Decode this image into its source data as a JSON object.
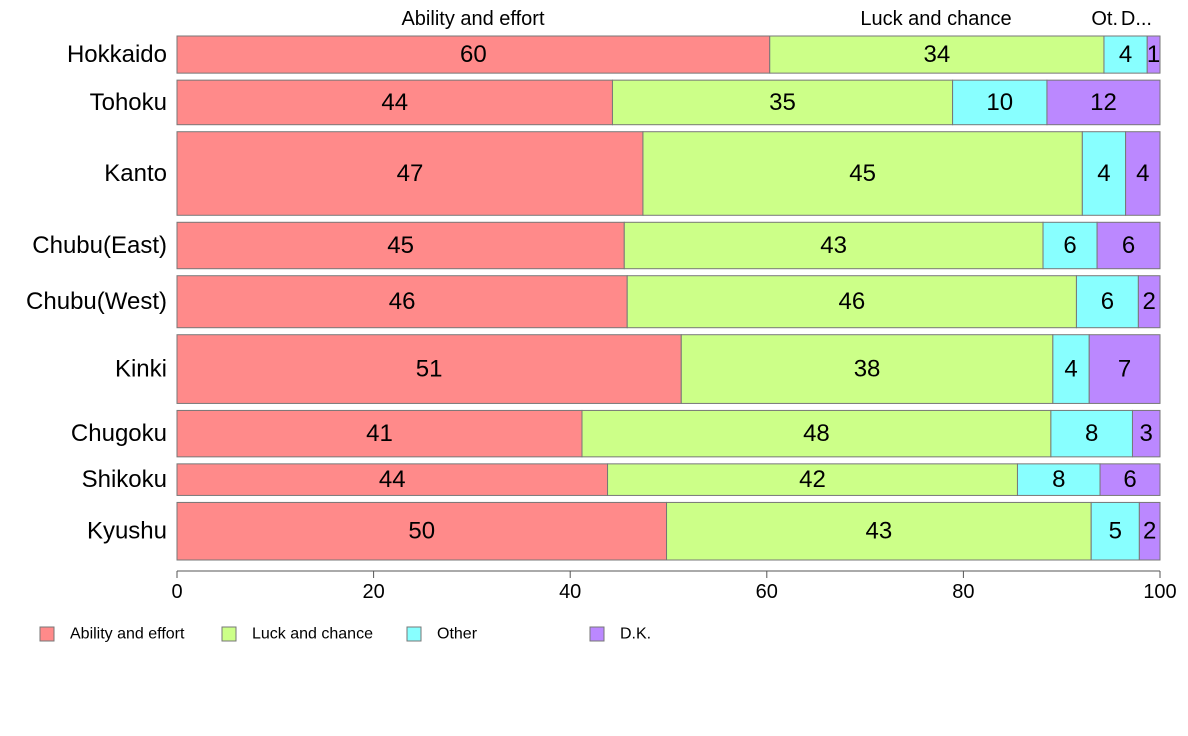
{
  "chart_data": {
    "type": "bar",
    "orientation": "horizontal",
    "stacked": true,
    "categories": [
      "Hokkaido",
      "Tohoku",
      "Kanto",
      "Chubu(East)",
      "Chubu(West)",
      "Kinki",
      "Chugoku",
      "Shikoku",
      "Kyushu"
    ],
    "series": [
      {
        "name": "Ability and effort",
        "color": "#ff8a8a",
        "values": [
          60.3,
          44.3,
          47.4,
          45.5,
          45.8,
          51.3,
          41.2,
          43.8,
          49.8
        ]
      },
      {
        "name": "Luck and chance",
        "color": "#ccff88",
        "values": [
          34.0,
          34.6,
          44.7,
          42.6,
          45.7,
          37.8,
          47.7,
          41.7,
          43.2
        ]
      },
      {
        "name": "Other",
        "color": "#88ffff",
        "values": [
          4.4,
          9.6,
          4.4,
          5.5,
          6.3,
          3.7,
          8.3,
          8.4,
          4.9
        ]
      },
      {
        "name": "D.K.",
        "color": "#bb88ff",
        "values": [
          1.3,
          11.5,
          3.5,
          6.4,
          2.2,
          7.2,
          2.8,
          6.1,
          2.1
        ]
      }
    ],
    "value_labels": [
      [
        "60",
        "34",
        "4",
        "1"
      ],
      [
        "44",
        "35",
        "10",
        "12"
      ],
      [
        "47",
        "45",
        "4",
        "4"
      ],
      [
        "45",
        "43",
        "6",
        "6"
      ],
      [
        "46",
        "46",
        "6",
        "2"
      ],
      [
        "51",
        "38",
        "4",
        "7"
      ],
      [
        "41",
        "48",
        "8",
        "3"
      ],
      [
        "44",
        "42",
        "8",
        "6"
      ],
      [
        "50",
        "43",
        "5",
        "2"
      ]
    ],
    "bar_weights": [
      1.0,
      1.2,
      2.25,
      1.25,
      1.4,
      1.85,
      1.25,
      0.85,
      1.55
    ],
    "column_headers": [
      "Ability and effort",
      "Luck and chance",
      "Ot.",
      "D..."
    ],
    "xlim": [
      0,
      100
    ],
    "xticks": [
      0,
      20,
      40,
      60,
      80,
      100
    ],
    "title": "",
    "xlabel": "",
    "ylabel": "",
    "grid": false,
    "legend": "bottom-left"
  }
}
